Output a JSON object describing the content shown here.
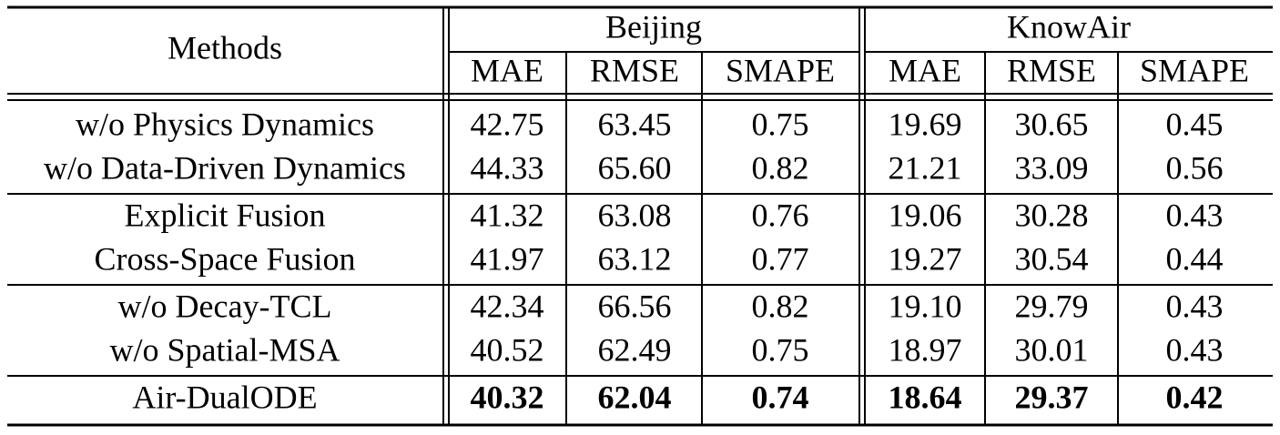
{
  "header": {
    "methods": "Methods",
    "groups": [
      {
        "name": "Beijing",
        "metrics": [
          "MAE",
          "RMSE",
          "SMAPE"
        ]
      },
      {
        "name": "KnowAir",
        "metrics": [
          "MAE",
          "RMSE",
          "SMAPE"
        ]
      }
    ]
  },
  "table": {
    "row_groups": [
      [
        {
          "method": "w/o Physics Dynamics",
          "values": [
            "42.75",
            "63.45",
            "0.75",
            "19.69",
            "30.65",
            "0.45"
          ]
        },
        {
          "method": "w/o Data-Driven Dynamics",
          "values": [
            "44.33",
            "65.60",
            "0.82",
            "21.21",
            "33.09",
            "0.56"
          ]
        }
      ],
      [
        {
          "method": "Explicit Fusion",
          "values": [
            "41.32",
            "63.08",
            "0.76",
            "19.06",
            "30.28",
            "0.43"
          ]
        },
        {
          "method": "Cross-Space Fusion",
          "values": [
            "41.97",
            "63.12",
            "0.77",
            "19.27",
            "30.54",
            "0.44"
          ]
        }
      ],
      [
        {
          "method": "w/o Decay-TCL",
          "values": [
            "42.34",
            "66.56",
            "0.82",
            "19.10",
            "29.79",
            "0.43"
          ]
        },
        {
          "method": "w/o Spatial-MSA",
          "values": [
            "40.52",
            "62.49",
            "0.75",
            "18.97",
            "30.01",
            "0.43"
          ]
        }
      ],
      [
        {
          "method": "Air-DualODE",
          "values": [
            "40.32",
            "62.04",
            "0.74",
            "18.64",
            "29.37",
            "0.42"
          ]
        }
      ]
    ]
  }
}
